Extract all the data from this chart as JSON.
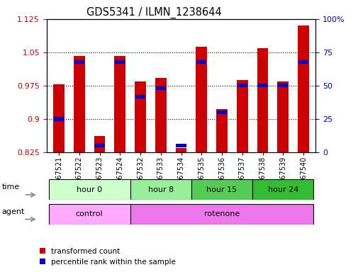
{
  "title": "GDS5341 / ILMN_1238644",
  "samples": [
    "GSM567521",
    "GSM567522",
    "GSM567523",
    "GSM567524",
    "GSM567532",
    "GSM567533",
    "GSM567534",
    "GSM567535",
    "GSM567536",
    "GSM567537",
    "GSM567538",
    "GSM567539",
    "GSM567540"
  ],
  "red_values": [
    0.978,
    1.042,
    0.862,
    1.042,
    0.984,
    0.993,
    0.835,
    1.063,
    0.922,
    0.988,
    1.06,
    0.985,
    1.11
  ],
  "blue_percentile": [
    25,
    68,
    5,
    68,
    42,
    48,
    5,
    68,
    30,
    50,
    50,
    50,
    68
  ],
  "ylim_left": [
    0.825,
    1.125
  ],
  "ylim_right": [
    0,
    100
  ],
  "yticks_left": [
    0.825,
    0.9,
    0.975,
    1.05,
    1.125
  ],
  "yticks_right": [
    0,
    25,
    50,
    75,
    100
  ],
  "bar_width": 0.55,
  "bar_color_red": "#cc0000",
  "bar_color_blue": "#0000cc",
  "baseline": 0.825,
  "grid_yticks": [
    0.9,
    0.975,
    1.05
  ],
  "time_segments": [
    {
      "label": "hour 0",
      "start": 0,
      "end": 3,
      "color": "#ccffcc"
    },
    {
      "label": "hour 8",
      "start": 4,
      "end": 6,
      "color": "#99ee99"
    },
    {
      "label": "hour 15",
      "start": 7,
      "end": 9,
      "color": "#55cc55"
    },
    {
      "label": "hour 24",
      "start": 10,
      "end": 12,
      "color": "#33bb33"
    }
  ],
  "agent_segments": [
    {
      "label": "control",
      "start": 0,
      "end": 3,
      "color": "#ffaaff"
    },
    {
      "label": "rotenone",
      "start": 4,
      "end": 12,
      "color": "#ee77ee"
    }
  ],
  "legend_red": "transformed count",
  "legend_blue": "percentile rank within the sample",
  "tick_label_color_left": "#cc0000",
  "tick_label_color_right": "#0000cc"
}
